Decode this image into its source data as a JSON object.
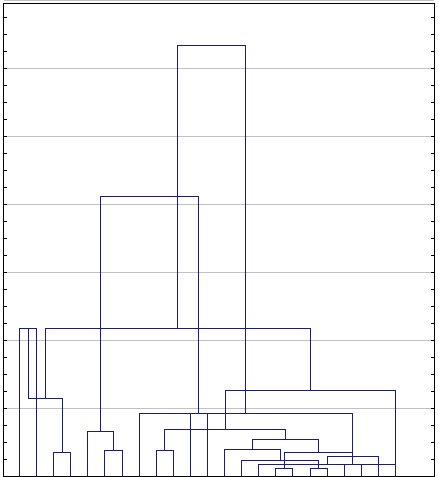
{
  "chart_data": {
    "type": "dendrogram",
    "title": "",
    "xlabel": "",
    "ylabel": "",
    "tick_labels": [],
    "leaf_count": 23,
    "grid": true,
    "grid_lines": "horizontal",
    "y_range": [
      0,
      7
    ],
    "colors": {
      "branch": "#1a1a8c",
      "grid": "#c0c0c0",
      "frame": "#000000",
      "background": "#ffffff"
    },
    "merges": [
      {
        "left": 16,
        "right": 17,
        "height": 0.12
      },
      {
        "left": 18,
        "right": 19,
        "height": 0.12
      },
      {
        "left": 15,
        "right": 23,
        "height": 0.17
      },
      {
        "left": 20,
        "right": 21,
        "height": 0.17
      },
      {
        "left": 3,
        "right": 4,
        "height": 0.35
      },
      {
        "left": 14,
        "right": 25,
        "height": 0.24
      },
      {
        "left": 6,
        "right": 7,
        "height": 0.38
      },
      {
        "left": 9,
        "right": 10,
        "height": 0.38
      },
      {
        "left": 22,
        "right": 26,
        "height": 0.29
      },
      {
        "left": 24,
        "right": 27,
        "height": 0.36
      },
      {
        "left": 13,
        "right": 29,
        "height": 0.4
      },
      {
        "left": 5,
        "right": 30,
        "height": 0.66
      },
      {
        "left": 8,
        "right": 32,
        "height": 0.93
      },
      {
        "left": 1,
        "right": 2,
        "height": 2.17
      },
      {
        "left": 33,
        "right": 34,
        "height": 0.55
      },
      {
        "left": 38,
        "right": 31,
        "height": 0.69
      },
      {
        "left": 28,
        "right": 37,
        "height": 1.14
      },
      {
        "left": 23,
        "right": 39,
        "height": 1.27
      },
      {
        "left": 11,
        "right": 12,
        "height": 0.93
      },
      {
        "left": 41,
        "right": 40,
        "height": 2.17
      },
      {
        "left": 35,
        "right": 42,
        "height": 4.12
      },
      {
        "left": 36,
        "right": 43,
        "height": 6.34
      }
    ]
  }
}
